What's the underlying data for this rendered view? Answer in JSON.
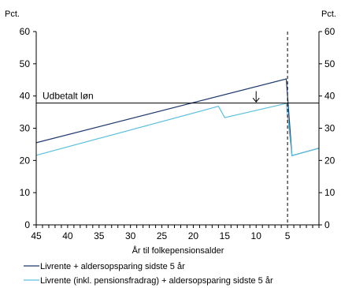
{
  "chart_data": {
    "type": "line",
    "left_unit": "Pct.",
    "right_unit": "Pct.",
    "xlabel": "År til folkepensionsalder",
    "x_reversed": true,
    "xlim": [
      45,
      0
    ],
    "ylim": [
      0,
      60
    ],
    "y_ticks": [
      0,
      10,
      20,
      30,
      40,
      50,
      60
    ],
    "y_tick_labels": [
      "0",
      "10",
      "20",
      "30",
      "40",
      "50",
      "60"
    ],
    "right_y_tick_labels": [
      "0",
      "10",
      "20",
      "30",
      "40",
      "50",
      "60"
    ],
    "x_ticks": [
      45,
      40,
      35,
      30,
      25,
      20,
      15,
      10,
      5
    ],
    "x_tick_labels": [
      "45",
      "40",
      "35",
      "30",
      "25",
      "20",
      "15",
      "10",
      "5"
    ],
    "grid": false,
    "legend_position": "bottom",
    "series": [
      {
        "name": "Livrente + aldersopsparing sidste 5 år",
        "color": "#1f3a6e",
        "points": [
          [
            45,
            25.5
          ],
          [
            5.2,
            45.3
          ],
          [
            4.3,
            21.5
          ],
          [
            0,
            23.8
          ]
        ]
      },
      {
        "name": "Livrente (inkl. pensionsfradrag) + aldersopsparing sidste 5 år",
        "color": "#5bc0de",
        "points": [
          [
            45,
            21.6
          ],
          [
            16,
            36.8
          ],
          [
            15,
            33.3
          ],
          [
            5.2,
            37.7
          ],
          [
            4.3,
            21.5
          ],
          [
            0,
            23.8
          ]
        ]
      }
    ],
    "reference_lines": [
      {
        "type": "horizontal",
        "y": 37.8,
        "label": "Udbetalt løn"
      },
      {
        "type": "vertical",
        "x": 5,
        "style": "dashed"
      }
    ],
    "arrow_annotation": {
      "x": 10,
      "from_y": 41.5,
      "to_y": 37.9
    }
  }
}
